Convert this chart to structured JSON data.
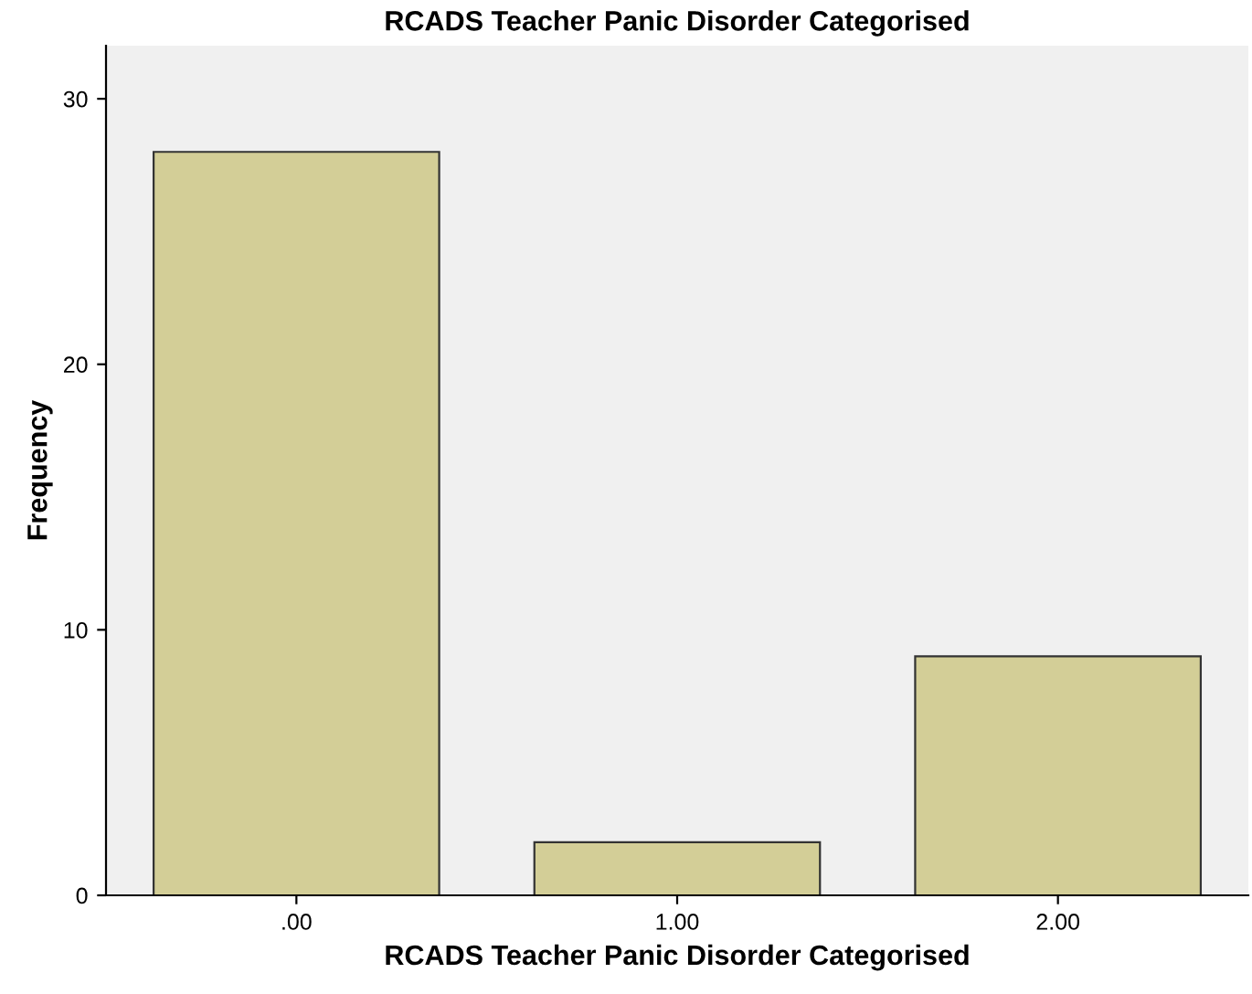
{
  "chart_data": {
    "type": "bar",
    "title": "RCADS Teacher Panic Disorder Categorised",
    "xlabel": "RCADS Teacher Panic Disorder Categorised",
    "ylabel": "Frequency",
    "categories": [
      ".00",
      "1.00",
      "2.00"
    ],
    "values": [
      28,
      2,
      9
    ],
    "color": "#d3ce97",
    "ylim": [
      0,
      32
    ],
    "yticks": [
      0,
      10,
      20,
      30
    ],
    "grid": false
  }
}
